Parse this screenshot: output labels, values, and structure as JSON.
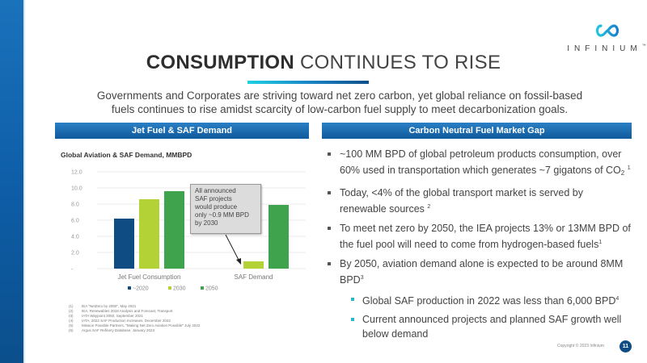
{
  "brand": {
    "name": "INFINIUM",
    "trademark": "™",
    "accent_color": "#1a72bb",
    "logo_icon": "infinity-icon"
  },
  "header": {
    "title_bold": "CONSUMPTION",
    "title_light": "CONTINUES TO RISE",
    "subtitle_line1": "Governments and Corporates are striving toward net zero carbon, yet global reliance on fossil-based",
    "subtitle_line2": "fuels continues to rise amidst scarcity of low-carbon fuel supply to meet decarbonization goals."
  },
  "sections": {
    "left_header": "Jet Fuel & SAF Demand",
    "right_header": "Carbon Neutral Fuel Market Gap"
  },
  "chart_data": {
    "type": "bar",
    "title": "Global Aviation & SAF Demand, MMBPD",
    "xlabel": "",
    "ylabel": "",
    "categories": [
      "Jet Fuel Consumption",
      "SAF Demand"
    ],
    "series": [
      {
        "name": "~2020",
        "color": "#0f4c84",
        "values": [
          6.2,
          null
        ]
      },
      {
        "name": "2030",
        "color": "#b3d235",
        "values": [
          8.6,
          0.9
        ]
      },
      {
        "name": "2050",
        "color": "#3fa34d",
        "values": [
          9.6,
          7.9
        ]
      }
    ],
    "ylim": [
      0,
      12
    ],
    "yticks": [
      0,
      2,
      4,
      6,
      8,
      10,
      12
    ],
    "ytick_labels": [
      "-",
      "2.0",
      "4.0",
      "6.0",
      "8.0",
      "10.0",
      "12.0"
    ],
    "grid": true,
    "legend_position": "bottom",
    "annotation": "All announced SAF projects would produce only ~0.9 MM BPD by 2030"
  },
  "callout": {
    "lines": [
      "All announced",
      "SAF projects",
      "would produce",
      "only  ~0.9 MM BPD",
      "by 2030"
    ]
  },
  "footnotes": [
    {
      "num": "(1)",
      "text": "IEA \"NetZero by 2050\", May 2021"
    },
    {
      "num": "(2)",
      "text": "IEA, Renewables 2018 Analysis and Forecast, Transport"
    },
    {
      "num": "(3)",
      "text": "IATA Waypoint 2050, September 2021"
    },
    {
      "num": "(4)",
      "text": "IATA, 2022 SAF Production Increases, December 2022"
    },
    {
      "num": "(5)",
      "text": "Mission Possible Partners, \"Making Net Zero Aviation Possible\" July 2022"
    },
    {
      "num": "(6)",
      "text": "Argus SAF Refinery Database, January 2023"
    }
  ],
  "bullets": {
    "b1_pre": "~100 MM BPD of global petroleum products consumption, over 60% used in transportation which generates ~7 gigatons of CO",
    "b1_sub": "2",
    "b1_sup": "1",
    "b2_text": "Today, <4% of the global transport market is served by renewable sources",
    "b2_sup": "2",
    "b3_text": "To meet net zero by 2050, the IEA projects 13% or 13MM BPD of the fuel pool will need to come from hydrogen-based fuels",
    "b3_sup": "1",
    "b4_text": "By 2050, aviation demand alone is expected to be around 8MM BPD",
    "b4_sup": "3",
    "b5_text": "Global SAF production in 2022 was less than 6,000 BPD",
    "b5_sup": "4",
    "b6_text": "Current announced projects and planned SAF growth well below demand"
  },
  "footer": {
    "copyright": "Copyright © 2023 Infinium",
    "page_number": "11"
  }
}
